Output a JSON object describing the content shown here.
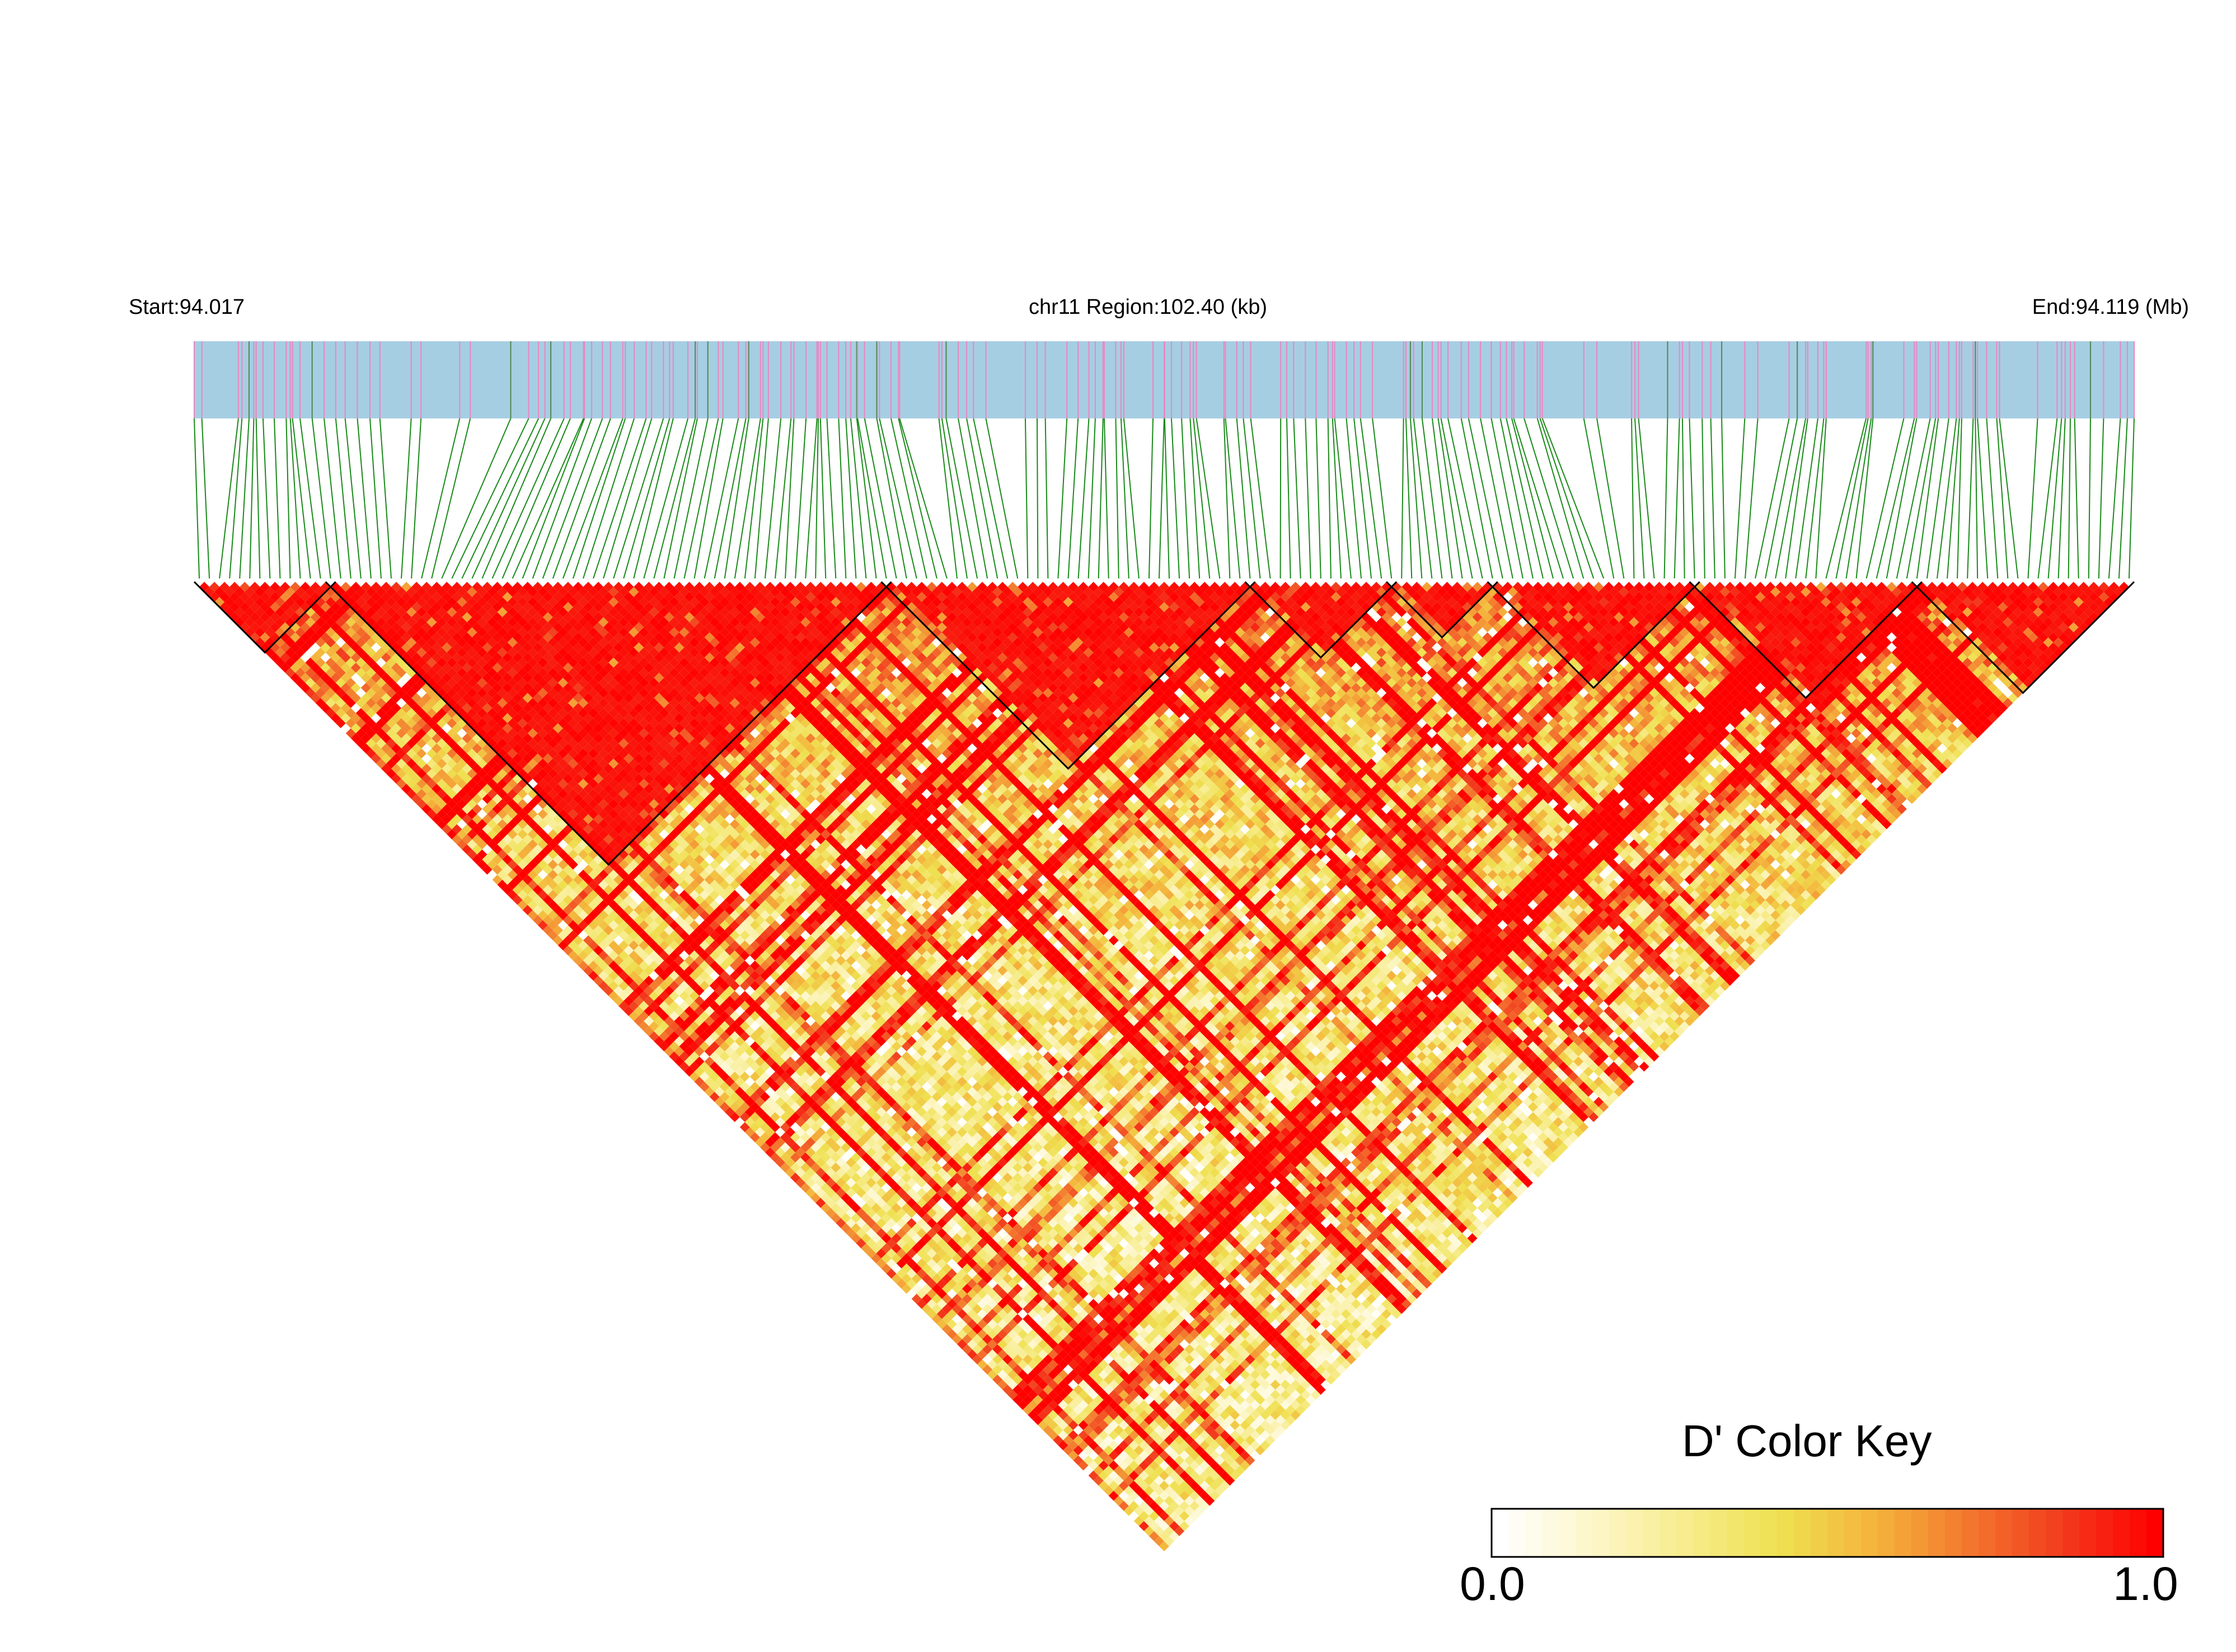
{
  "header": {
    "start_label": "Start:94.017",
    "region_label": "chr11 Region:102.40 (kb)",
    "end_label": "End:94.119 (Mb)"
  },
  "chart_data": {
    "type": "heatmap",
    "subtype": "linkage-disequilibrium-triangle",
    "chromosome": "chr11",
    "start_mb": 94.017,
    "end_mb": 94.119,
    "region_kb": 102.4,
    "marker_count": 192,
    "value_range": [
      0.0,
      1.0
    ],
    "color_key": {
      "title": "D' Color Key",
      "min_label": "0.0",
      "max_label": "1.0",
      "colors": [
        "#ffffff",
        "#fdf6c8",
        "#f7ec8c",
        "#efe050",
        "#f4b43c",
        "#f3782e",
        "#f23c1e",
        "#ff0000"
      ]
    },
    "haplotype_blocks": [
      {
        "from": 0,
        "to": 13
      },
      {
        "from": 13,
        "to": 68
      },
      {
        "from": 68,
        "to": 104
      },
      {
        "from": 104,
        "to": 118
      },
      {
        "from": 118,
        "to": 128
      },
      {
        "from": 128,
        "to": 148
      },
      {
        "from": 148,
        "to": 170
      },
      {
        "from": 170,
        "to": 191
      }
    ],
    "colors": {
      "track_background": "#a6cee3",
      "track_marks": "#e78ac3",
      "connector_lines": "#1a8a1a",
      "block_outline": "#000000"
    }
  }
}
